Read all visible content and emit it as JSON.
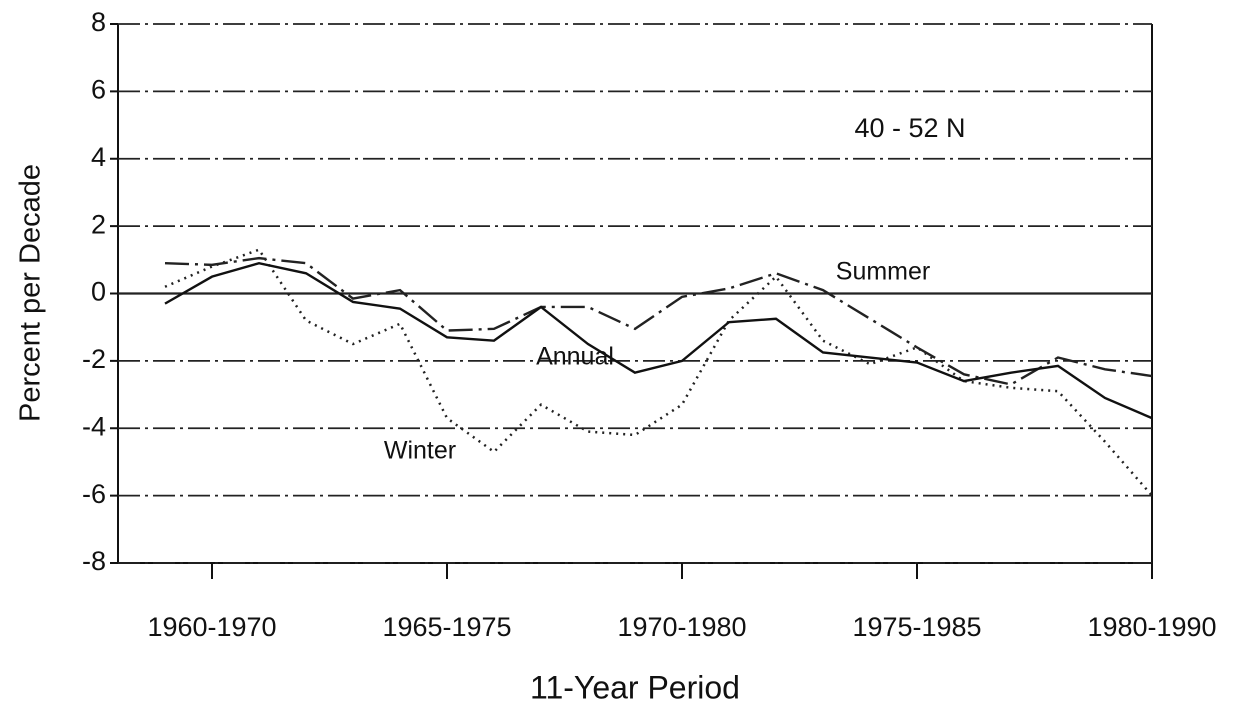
{
  "chart_data": {
    "type": "line",
    "annotation": "40 - 52 N",
    "xlabel": "11-Year Period",
    "ylabel": "Percent per Decade",
    "x": [
      1959,
      1960,
      1961,
      1962,
      1963,
      1964,
      1965,
      1966,
      1967,
      1968,
      1969,
      1970,
      1971,
      1972,
      1973,
      1974,
      1975,
      1976,
      1977,
      1978,
      1979,
      1980
    ],
    "series": [
      {
        "name": "Winter",
        "color": "#222222",
        "style": "dotted",
        "values": [
          0.2,
          0.8,
          1.3,
          -0.8,
          -1.5,
          -0.9,
          -3.7,
          -4.7,
          -3.3,
          -4.1,
          -4.2,
          -3.3,
          -0.8,
          0.5,
          -1.4,
          -2.1,
          -1.6,
          -2.6,
          -2.8,
          -2.9,
          -4.4,
          -6.0
        ]
      },
      {
        "name": "Summer",
        "color": "#222222",
        "style": "dashdot",
        "values": [
          0.9,
          0.85,
          1.05,
          0.9,
          -0.15,
          0.1,
          -1.1,
          -1.05,
          -0.4,
          -0.4,
          -1.05,
          -0.1,
          0.15,
          0.6,
          0.1,
          -0.75,
          -1.6,
          -2.4,
          -2.7,
          -1.9,
          -2.25,
          -2.45
        ]
      },
      {
        "name": "Annual",
        "color": "#111111",
        "style": "solid",
        "values": [
          -0.3,
          0.5,
          0.9,
          0.6,
          -0.25,
          -0.45,
          -1.3,
          -1.4,
          -0.4,
          -1.5,
          -2.35,
          -2.0,
          -0.85,
          -0.75,
          -1.75,
          -1.9,
          -2.05,
          -2.6,
          -2.35,
          -2.15,
          -3.1,
          -3.7
        ]
      }
    ],
    "xlim": [
      1958,
      1980
    ],
    "xticks": [
      {
        "value": 1960,
        "label": "1960-1970"
      },
      {
        "value": 1965,
        "label": "1965-1975"
      },
      {
        "value": 1970,
        "label": "1970-1980"
      },
      {
        "value": 1975,
        "label": "1975-1985"
      },
      {
        "value": 1980,
        "label": "1980-1990"
      }
    ],
    "ylim": [
      -8,
      8
    ],
    "yticks": [
      -8,
      -6,
      -4,
      -2,
      0,
      2,
      4,
      6,
      8
    ],
    "grid": true
  }
}
